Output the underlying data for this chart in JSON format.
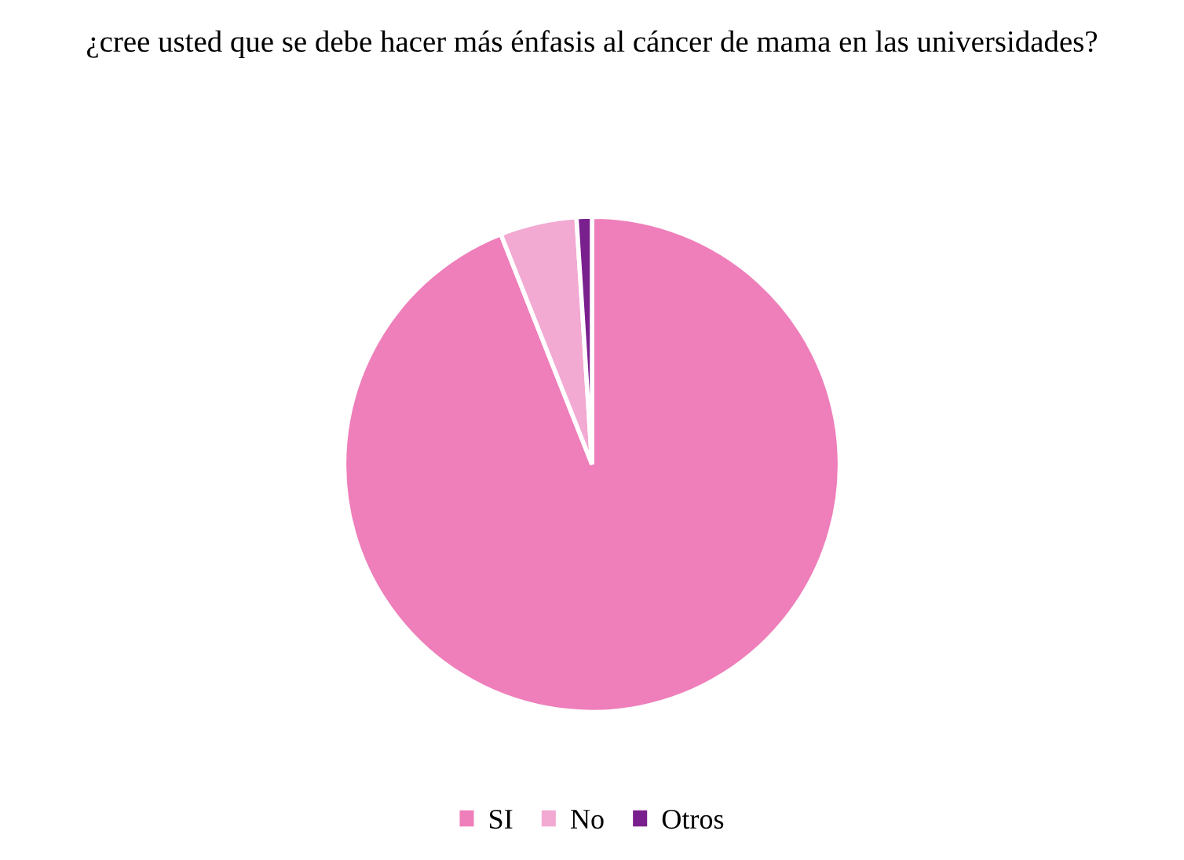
{
  "chart_data": {
    "type": "pie",
    "title": "¿cree usted que se debe hacer más énfasis al cáncer de mama en las universidades?",
    "categories": [
      "SI",
      "No",
      "Otros"
    ],
    "values": [
      94,
      5,
      1
    ],
    "colors": [
      "#ee7fba",
      "#f2a9d2",
      "#7a1f8e"
    ],
    "legend": "bottom"
  }
}
